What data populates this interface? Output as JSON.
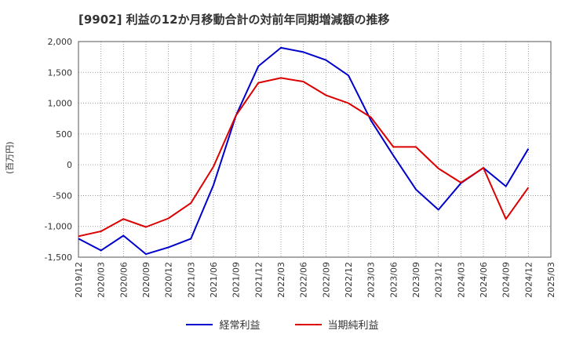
{
  "chart_data": {
    "type": "line",
    "title": "[9902]  利益の12か月移動合計の対前年同期増減額の推移",
    "ylabel": "(百万円)",
    "xlabel": "",
    "ylim": [
      -1500,
      2000
    ],
    "yticks": [
      2000,
      1500,
      1000,
      500,
      0,
      -500,
      -1000,
      -1500
    ],
    "ytick_labels": [
      "2,000",
      "1,500",
      "1,000",
      "500",
      "0",
      "-500",
      "-1,000",
      "-1,500"
    ],
    "categories": [
      "2019/12",
      "2020/03",
      "2020/06",
      "2020/09",
      "2020/12",
      "2021/03",
      "2021/06",
      "2021/09",
      "2021/12",
      "2022/03",
      "2022/06",
      "2022/09",
      "2022/12",
      "2023/03",
      "2023/06",
      "2023/09",
      "2023/12",
      "2024/03",
      "2024/06",
      "2024/09",
      "2024/12",
      "2025/03"
    ],
    "grid": true,
    "legend_position": "bottom-center",
    "series": [
      {
        "name": "経常利益",
        "color": "#0000cc",
        "values": [
          -1200,
          -1390,
          -1150,
          -1450,
          -1340,
          -1200,
          -330,
          800,
          1600,
          1900,
          1830,
          1700,
          1450,
          720,
          150,
          -400,
          -730,
          -300,
          -50,
          -350,
          260,
          null
        ]
      },
      {
        "name": "当期純利益",
        "color": "#dd0000",
        "values": [
          -1160,
          -1080,
          -880,
          -1010,
          -870,
          -620,
          -30,
          800,
          1330,
          1410,
          1350,
          1130,
          1000,
          770,
          290,
          290,
          -60,
          -290,
          -50,
          -880,
          -370,
          null
        ]
      }
    ]
  }
}
